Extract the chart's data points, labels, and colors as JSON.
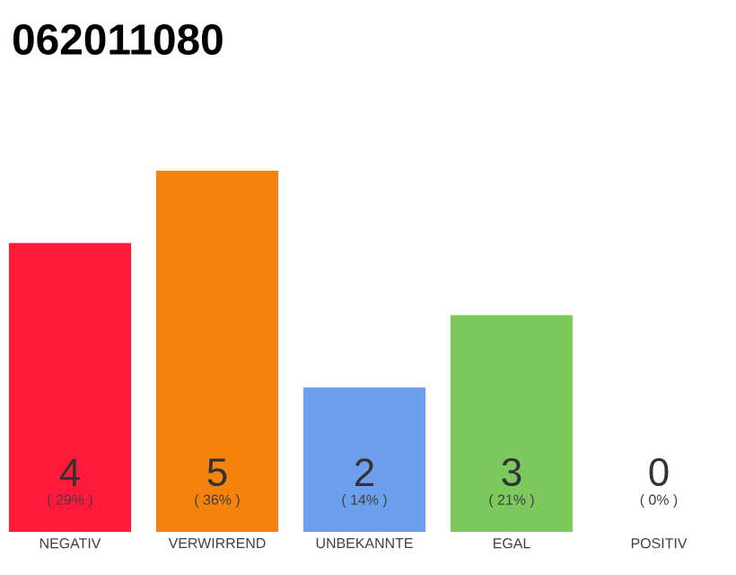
{
  "chart_data": {
    "type": "bar",
    "title": "062011080",
    "categories": [
      "NEGATIV",
      "VERWIRREND",
      "UNBEKANNTE",
      "EGAL",
      "POSITIV"
    ],
    "values": [
      4,
      5,
      2,
      3,
      0
    ],
    "colors": [
      "#ff1a3c",
      "#f5820d",
      "#6ca0ec",
      "#7dc95e",
      "#bbbbbb"
    ],
    "ylim": [
      0,
      5
    ],
    "data_labels": true,
    "grid": false,
    "tick_labels": "x",
    "annotations": [
      "( 29% )",
      "( 36% )",
      "( 14% )",
      "( 21% )",
      "( 0% )"
    ]
  }
}
